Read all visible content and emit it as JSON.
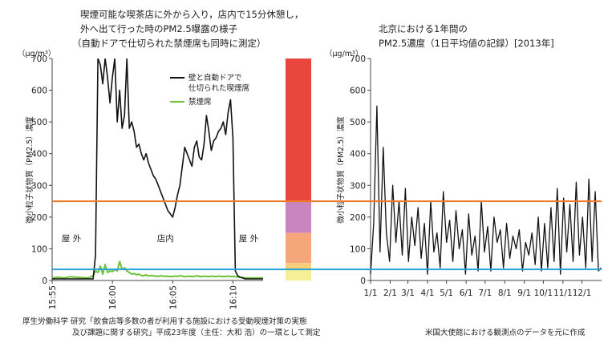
{
  "left_chart_title": [
    "喫煙可能な喫茶店に外から入り，店内で15分休憩し，",
    "外へ出て行った時のPM2.5曝露の様子",
    "（自動ドアで仕切られた禁煙席も同時に測定）"
  ],
  "right_chart_title": [
    "北京における1年間の",
    "PM2.5濃度（1日平均値の記録）[2013年]"
  ],
  "source_left": [
    "厚生労働科学 研究「飲食店等多数の者が利用する施設における受動喫煙対策の実態",
    "及び課題に関する研究」平成23年度（主任：大和 浩）の一環として測定"
  ],
  "source_right": "米国大使館における観測点のデータを元に作成",
  "reference_lines": {
    "orange": 250,
    "blue": 35,
    "orange_color": "#f07a2a",
    "blue_color": "#2aa3d9"
  },
  "colors": {
    "smoking": "#111111",
    "nonsmoking": "#6cc23a",
    "axis": "#444444"
  },
  "aqi_bar": [
    {
      "from": 250,
      "to": 700,
      "color": "#e8473d"
    },
    {
      "from": 150,
      "to": 250,
      "color": "#c985c0"
    },
    {
      "from": 55,
      "to": 150,
      "color": "#f5a67a"
    },
    {
      "from": 35,
      "to": 55,
      "color": "#f7cf78"
    },
    {
      "from": 0,
      "to": 35,
      "color": "#f6ef95"
    }
  ],
  "chart_data": [
    {
      "type": "line",
      "ylabel": "微小粒子状物質（PM2.5）濃度",
      "yunit": "（μg/m³）",
      "ylim": [
        0,
        700
      ],
      "yticks": [
        "0",
        "100",
        "200",
        "300",
        "400",
        "500",
        "600",
        "700"
      ],
      "xlim": [
        0,
        17.5
      ],
      "xticks": [
        {
          "label": "15:55",
          "x": 0
        },
        {
          "label": "16:00",
          "x": 5
        },
        {
          "label": "16:05",
          "x": 10
        },
        {
          "label": "16:10",
          "x": 15
        }
      ],
      "zones": [
        {
          "label": "屋 外",
          "x": 1.6
        },
        {
          "label": "店内",
          "x": 9.4
        },
        {
          "label": "屋 外",
          "x": 16.3
        }
      ],
      "legend_position": "top-right",
      "series": [
        {
          "name": "壁と自動ドアで仕切られた喫煙席",
          "x": [
            0,
            0.5,
            1,
            1.5,
            2,
            2.5,
            3,
            3.4,
            3.6,
            3.8,
            4,
            4.2,
            4.4,
            4.6,
            4.8,
            5,
            5.2,
            5.4,
            5.6,
            5.8,
            6,
            6.2,
            6.4,
            6.6,
            6.8,
            7,
            7.2,
            7.4,
            7.6,
            7.8,
            8,
            8.2,
            8.4,
            8.6,
            8.8,
            9,
            9.2,
            9.4,
            9.6,
            9.8,
            10,
            10.2,
            10.4,
            10.6,
            10.8,
            11,
            11.2,
            11.4,
            11.6,
            11.8,
            12,
            12.2,
            12.4,
            12.6,
            12.8,
            13,
            13.2,
            13.4,
            13.6,
            13.8,
            14,
            14.2,
            14.4,
            14.6,
            14.8,
            15,
            15.2,
            15.4,
            15.6,
            15.8,
            16,
            16.5,
            17,
            17.5
          ],
          "y": [
            5,
            5,
            5,
            5,
            5,
            5,
            5,
            5,
            80,
            700,
            680,
            620,
            700,
            640,
            560,
            640,
            700,
            500,
            600,
            480,
            520,
            700,
            480,
            500,
            470,
            420,
            430,
            400,
            380,
            400,
            370,
            350,
            330,
            320,
            300,
            280,
            260,
            240,
            220,
            210,
            200,
            230,
            270,
            300,
            360,
            420,
            400,
            380,
            360,
            420,
            440,
            390,
            380,
            430,
            520,
            470,
            410,
            440,
            450,
            470,
            480,
            500,
            460,
            530,
            570,
            450,
            30,
            15,
            10,
            8,
            5,
            5,
            5,
            5
          ]
        },
        {
          "name": "禁煙席",
          "x": [
            0,
            0.5,
            1,
            1.5,
            2,
            2.5,
            3,
            3.4,
            3.6,
            3.8,
            4,
            4.2,
            4.4,
            4.6,
            4.8,
            5,
            5.2,
            5.4,
            5.6,
            5.8,
            6,
            6.2,
            6.4,
            6.6,
            6.8,
            7,
            7.2,
            7.4,
            7.6,
            7.8,
            8,
            8.2,
            8.4,
            8.6,
            8.8,
            9,
            9.2,
            9.4,
            9.6,
            9.8,
            10,
            10.2,
            10.4,
            10.6,
            10.8,
            11,
            11.2,
            11.4,
            11.6,
            11.8,
            12,
            12.2,
            12.4,
            12.6,
            12.8,
            13,
            13.2,
            13.4,
            13.6,
            13.8,
            14,
            14.2,
            14.4,
            14.6,
            14.8,
            15,
            15.2,
            15.4,
            15.6,
            15.8,
            16,
            16.5,
            17,
            17.5
          ],
          "y": [
            8,
            10,
            8,
            12,
            10,
            9,
            8,
            15,
            30,
            25,
            45,
            20,
            50,
            25,
            30,
            28,
            35,
            30,
            60,
            35,
            40,
            30,
            25,
            20,
            22,
            18,
            20,
            16,
            15,
            18,
            14,
            16,
            15,
            14,
            13,
            15,
            14,
            13,
            14,
            12,
            13,
            14,
            13,
            15,
            14,
            12,
            13,
            14,
            12,
            13,
            15,
            13,
            12,
            14,
            13,
            12,
            14,
            13,
            12,
            14,
            13,
            12,
            13,
            14,
            12,
            13,
            12,
            11,
            10,
            9,
            8,
            8,
            8,
            8
          ]
        }
      ]
    },
    {
      "type": "line",
      "ylabel": "微小粒子状物質（PM2.5）濃度",
      "yunit": "（μg/m³）",
      "ylim": [
        0,
        700
      ],
      "yticks": [
        "0",
        "100",
        "200",
        "300",
        "400",
        "500",
        "600",
        "700"
      ],
      "xticks": [
        "1/1",
        "2/1",
        "3/1",
        "4/1",
        "5/1",
        "6/1",
        "7/1",
        "8/1",
        "9/1",
        "10/1",
        "11/1",
        "12/1"
      ],
      "xlim": [
        0,
        365
      ],
      "series": [
        {
          "name": "",
          "x": [
            0,
            5,
            10,
            15,
            20,
            25,
            30,
            35,
            40,
            45,
            50,
            55,
            60,
            65,
            70,
            75,
            80,
            85,
            90,
            95,
            100,
            105,
            110,
            115,
            120,
            125,
            130,
            135,
            140,
            145,
            150,
            155,
            160,
            165,
            170,
            175,
            180,
            185,
            190,
            195,
            200,
            205,
            210,
            215,
            220,
            225,
            230,
            235,
            240,
            245,
            250,
            255,
            260,
            265,
            270,
            275,
            280,
            285,
            290,
            295,
            300,
            305,
            310,
            315,
            320,
            325,
            330,
            335,
            340,
            345,
            350,
            355,
            360,
            364
          ],
          "y": [
            20,
            180,
            550,
            90,
            420,
            150,
            60,
            300,
            120,
            250,
            80,
            290,
            60,
            200,
            110,
            230,
            70,
            180,
            20,
            250,
            90,
            150,
            40,
            280,
            120,
            190,
            60,
            220,
            100,
            160,
            20,
            210,
            80,
            140,
            30,
            250,
            90,
            170,
            30,
            200,
            120,
            160,
            40,
            180,
            70,
            140,
            100,
            160,
            30,
            120,
            80,
            150,
            50,
            200,
            30,
            180,
            40,
            230,
            60,
            290,
            20,
            260,
            90,
            240,
            60,
            310,
            80,
            200,
            40,
            320,
            60,
            280,
            30,
            40
          ]
        }
      ]
    }
  ]
}
